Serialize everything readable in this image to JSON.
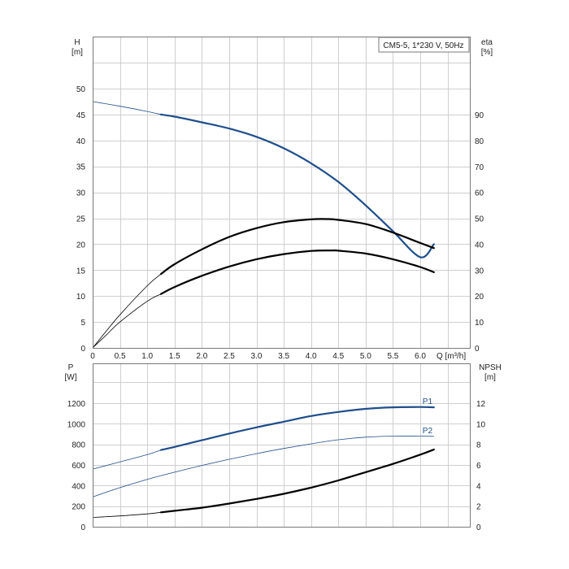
{
  "chart_data": [
    {
      "type": "line",
      "title": "CM5-5, 1*230 V, 50Hz",
      "xlabel": "Q [m³/h]",
      "xlim": [
        0,
        6.9
      ],
      "x_ticks": [
        "0",
        "0.5",
        "1.0",
        "1.5",
        "2.0",
        "2.5",
        "3.0",
        "3.5",
        "4.0",
        "4.5",
        "5.0",
        "5.5",
        "6.0"
      ],
      "y_left": {
        "label": "H",
        "unit": "[m]",
        "lim": [
          0,
          55
        ],
        "ticks": [
          "0",
          "5",
          "10",
          "15",
          "20",
          "25",
          "30",
          "35",
          "40",
          "45",
          "50"
        ]
      },
      "y_right": {
        "label": "eta",
        "unit": "[%]",
        "lim": [
          0,
          110
        ],
        "ticks": [
          "0",
          "10",
          "20",
          "30",
          "40",
          "50",
          "60",
          "70",
          "80",
          "90"
        ]
      },
      "grid": true,
      "series": [
        {
          "axis": "left",
          "color": "#1f4e8c",
          "x": [
            0,
            0.5,
            1.0,
            1.25,
            1.5,
            2.0,
            2.5,
            3.0,
            3.5,
            4.0,
            4.5,
            5.0,
            5.5,
            6.0,
            6.25
          ],
          "values": [
            47.5,
            46.6,
            45.6,
            45.0,
            44.6,
            43.5,
            42.3,
            40.7,
            38.5,
            35.6,
            32.0,
            27.5,
            22.5,
            17.5,
            20.0
          ],
          "thin_until": 1.25
        },
        {
          "axis": "right",
          "color": "#000000",
          "x": [
            0,
            0.25,
            0.5,
            1.0,
            1.25,
            1.5,
            2.0,
            2.5,
            3.0,
            3.5,
            4.0,
            4.3,
            4.5,
            5.0,
            5.5,
            6.0,
            6.25
          ],
          "values": [
            0,
            6.5,
            12.8,
            24.0,
            28.5,
            32.3,
            38.0,
            42.8,
            46.2,
            48.5,
            49.6,
            49.7,
            49.4,
            47.8,
            44.5,
            40.5,
            38.5
          ],
          "thin_until": 1.25
        },
        {
          "axis": "right",
          "color": "#000000",
          "x": [
            0,
            0.25,
            0.5,
            1.0,
            1.25,
            1.5,
            2.0,
            2.5,
            3.0,
            3.5,
            4.0,
            4.4,
            4.5,
            5.0,
            5.5,
            6.0,
            6.25
          ],
          "values": [
            0,
            5.0,
            10.0,
            18.0,
            20.8,
            23.5,
            27.8,
            31.4,
            34.2,
            36.2,
            37.4,
            37.6,
            37.5,
            36.4,
            34.2,
            31.2,
            29.2
          ],
          "thin_until": 1.25
        }
      ]
    },
    {
      "type": "line",
      "xlim": [
        0,
        6.9
      ],
      "y_left": {
        "label": "P",
        "unit": "[W]",
        "lim": [
          0,
          1400
        ],
        "ticks": [
          "0",
          "200",
          "400",
          "600",
          "800",
          "1000",
          "1200"
        ]
      },
      "y_right": {
        "label": "NPSH",
        "unit": "[m]",
        "lim": [
          0,
          14
        ],
        "ticks": [
          "0",
          "2",
          "4",
          "6",
          "8",
          "10",
          "12"
        ]
      },
      "grid": true,
      "series": [
        {
          "name": "P1",
          "axis": "left",
          "color": "#1f4e8c",
          "x": [
            0,
            0.5,
            1.0,
            1.25,
            1.5,
            2.0,
            2.5,
            3.0,
            3.5,
            4.0,
            4.5,
            5.0,
            5.5,
            6.0,
            6.25
          ],
          "values": [
            560,
            630,
            700,
            745,
            775,
            840,
            905,
            965,
            1020,
            1075,
            1115,
            1145,
            1160,
            1163,
            1160
          ],
          "thin_until": 1.25
        },
        {
          "name": "P2",
          "axis": "left",
          "color": "#1f4e8c",
          "x": [
            0,
            0.5,
            1.0,
            1.5,
            2.0,
            2.5,
            3.0,
            3.5,
            4.0,
            4.5,
            5.0,
            5.5,
            6.0,
            6.25
          ],
          "values": [
            290,
            380,
            460,
            530,
            595,
            655,
            710,
            760,
            805,
            845,
            870,
            880,
            880,
            878
          ],
          "thin_until": 6.3
        },
        {
          "axis": "right",
          "color": "#000000",
          "x": [
            0,
            0.5,
            1.0,
            1.25,
            1.5,
            2.0,
            2.5,
            3.0,
            3.5,
            4.0,
            4.5,
            5.0,
            5.5,
            6.0,
            6.25
          ],
          "values": [
            0.9,
            1.05,
            1.25,
            1.4,
            1.55,
            1.85,
            2.25,
            2.7,
            3.2,
            3.8,
            4.5,
            5.3,
            6.1,
            7.0,
            7.5
          ],
          "thin_until": 1.25
        }
      ]
    }
  ]
}
